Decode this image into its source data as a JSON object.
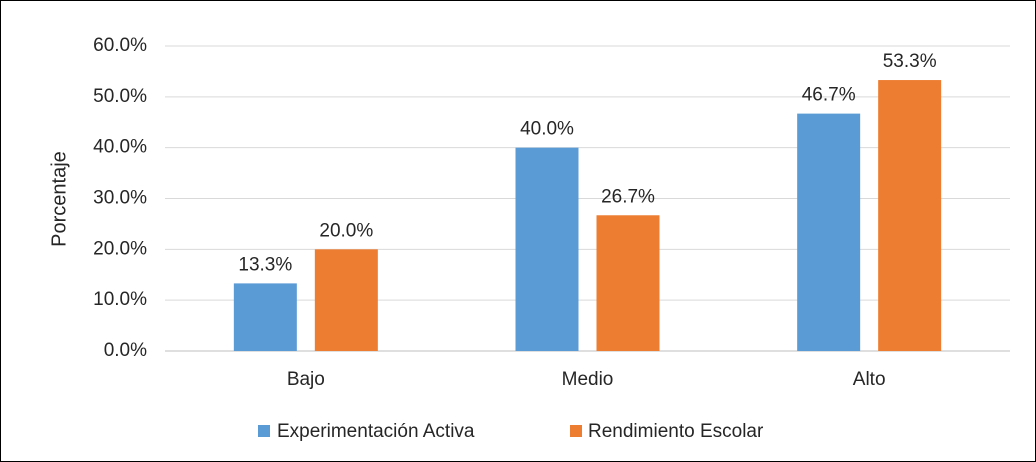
{
  "chart_data": {
    "type": "bar",
    "y_label": "Porcentaje",
    "categories": [
      "Bajo",
      "Medio",
      "Alto"
    ],
    "series": [
      {
        "name": "Experimentación Activa",
        "color": "#5b9bd5",
        "values": [
          13.3,
          40.0,
          46.7
        ],
        "value_labels": [
          "13.3%",
          "40.0%",
          "46.7%"
        ]
      },
      {
        "name": "Rendimiento Escolar",
        "color": "#ed7d31",
        "values": [
          20.0,
          26.7,
          53.3
        ],
        "value_labels": [
          "20.0%",
          "26.7%",
          "53.3%"
        ]
      }
    ],
    "ylim": [
      0,
      60
    ],
    "yticks": [
      {
        "value": 0,
        "label": "0.0%"
      },
      {
        "value": 10,
        "label": "10.0%"
      },
      {
        "value": 20,
        "label": "20.0%"
      },
      {
        "value": 30,
        "label": "30.0%"
      },
      {
        "value": 40,
        "label": "40.0%"
      },
      {
        "value": 50,
        "label": "50.0%"
      },
      {
        "value": 60,
        "label": "60.0%"
      }
    ],
    "grid": true,
    "legend": "bottom"
  }
}
